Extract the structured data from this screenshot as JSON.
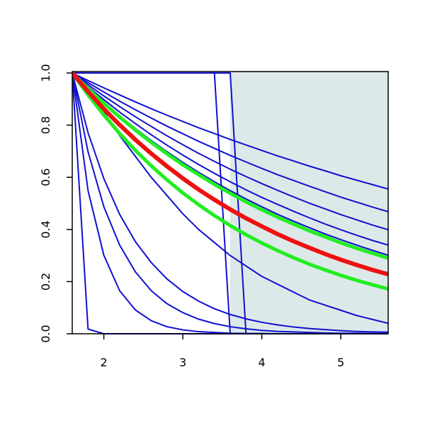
{
  "chart_data": {
    "type": "line",
    "x": [
      1.6,
      1.8,
      2.0,
      2.2,
      2.4,
      2.6,
      2.8,
      3.0,
      3.2,
      3.4,
      3.6,
      3.8,
      4.0,
      4.2,
      4.4,
      4.6,
      4.8,
      5.0,
      5.2,
      5.4,
      5.6
    ],
    "xlim": [
      1.6,
      5.6
    ],
    "ylim": [
      0,
      1
    ],
    "xticks": [
      2,
      3,
      4,
      5
    ],
    "yticks": [
      {
        "value": 0,
        "label": "0.0"
      },
      {
        "value": 0.2,
        "label": "0.2"
      },
      {
        "value": 0.4,
        "label": "0.4"
      },
      {
        "value": 0.6,
        "label": "0.6"
      },
      {
        "value": 0.8,
        "label": "0.8"
      },
      {
        "value": 1,
        "label": "1.0"
      }
    ],
    "shaded_xrange": [
      3.6,
      5.6
    ],
    "shade_color": "#dde9e9",
    "series": [
      {
        "color": "#1010d0",
        "width": 2,
        "values": [
          1,
          0.971,
          0.943,
          0.916,
          0.889,
          0.863,
          0.838,
          0.814,
          0.79,
          0.768,
          0.745,
          0.724,
          0.703,
          0.682,
          0.663,
          0.643,
          0.625,
          0.606,
          0.589,
          0.572,
          0.555
        ]
      },
      {
        "color": "#1010d0",
        "width": 2,
        "values": [
          1,
          0.963,
          0.927,
          0.892,
          0.859,
          0.827,
          0.796,
          0.767,
          0.738,
          0.711,
          0.684,
          0.659,
          0.634,
          0.61,
          0.588,
          0.566,
          0.545,
          0.524,
          0.505,
          0.486,
          0.468
        ]
      },
      {
        "color": "#1010d0",
        "width": 2,
        "values": [
          1,
          0.955,
          0.912,
          0.871,
          0.832,
          0.795,
          0.759,
          0.725,
          0.692,
          0.661,
          0.631,
          0.603,
          0.576,
          0.55,
          0.525,
          0.501,
          0.479,
          0.457,
          0.437,
          0.417,
          0.399
        ]
      },
      {
        "color": "#1010d0",
        "width": 2,
        "values": [
          1,
          0.947,
          0.898,
          0.85,
          0.806,
          0.763,
          0.723,
          0.685,
          0.649,
          0.615,
          0.583,
          0.552,
          0.523,
          0.496,
          0.47,
          0.445,
          0.421,
          0.399,
          0.378,
          0.358,
          0.34
        ]
      },
      {
        "color": "#1010d0",
        "width": 2,
        "values": [
          1,
          0.942,
          0.887,
          0.835,
          0.787,
          0.741,
          0.698,
          0.657,
          0.619,
          0.583,
          0.549,
          0.517,
          0.487,
          0.458,
          0.432,
          0.407,
          0.383,
          0.361,
          0.34,
          0.32,
          0.301
        ]
      },
      {
        "color": "#1010d0",
        "width": 2,
        "values": [
          1,
          0.92,
          0.85,
          0.76,
          0.68,
          0.6,
          0.53,
          0.46,
          0.4,
          0.35,
          0.3,
          0.26,
          0.22,
          0.19,
          0.16,
          0.13,
          0.11,
          0.09,
          0.07,
          0.055,
          0.04
        ]
      },
      {
        "color": "#1010d0",
        "width": 2,
        "values": [
          1,
          0.771,
          0.595,
          0.458,
          0.353,
          0.273,
          0.21,
          0.162,
          0.125,
          0.096,
          0.074,
          0.057,
          0.044,
          0.034,
          0.026,
          0.02,
          0.016,
          0.012,
          0.009,
          0.007,
          0.006
        ]
      },
      {
        "color": "#1010d0",
        "width": 2,
        "values": [
          1,
          0.698,
          0.487,
          0.34,
          0.237,
          0.165,
          0.115,
          0.081,
          0.056,
          0.039,
          0.027,
          0.019,
          0.013,
          0.009,
          0.007,
          0.005,
          0.003,
          0.002,
          0.002,
          0.001,
          0.001
        ]
      },
      {
        "color": "#1010d0",
        "width": 2,
        "values": [
          1,
          0.549,
          0.301,
          0.165,
          0.091,
          0.05,
          0.027,
          0.015,
          0.008,
          0.005,
          0.002,
          0.001,
          0.001,
          0,
          0,
          0,
          0,
          0,
          0,
          0,
          0
        ]
      },
      {
        "color": "#1010d0",
        "width": 2,
        "values": [
          1,
          0.018,
          0,
          0,
          0,
          0,
          0,
          0,
          0,
          0,
          0,
          0,
          0,
          0,
          0,
          0,
          0,
          0,
          0,
          0,
          0
        ]
      },
      {
        "color": "#1010d0",
        "width": 2,
        "values": [
          1,
          1,
          1,
          1,
          1,
          1,
          1,
          1,
          1,
          1,
          0,
          0,
          0,
          0,
          0,
          0,
          0,
          0,
          0,
          0,
          0
        ]
      },
      {
        "color": "#1010d0",
        "width": 2,
        "values": [
          1,
          1,
          1,
          1,
          1,
          1,
          1,
          1,
          1,
          1,
          1,
          0,
          0,
          0,
          0,
          0,
          0,
          0,
          0,
          0,
          0
        ]
      },
      {
        "color": "#22ee22",
        "width": 5,
        "values": [
          1,
          0.94,
          0.884,
          0.831,
          0.781,
          0.734,
          0.69,
          0.648,
          0.61,
          0.573,
          0.539,
          0.506,
          0.476,
          0.447,
          0.421,
          0.395,
          0.372,
          0.349,
          0.328,
          0.309,
          0.29
        ]
      },
      {
        "color": "#22ee22",
        "width": 5,
        "values": [
          1,
          0.916,
          0.839,
          0.768,
          0.703,
          0.644,
          0.59,
          0.54,
          0.495,
          0.453,
          0.415,
          0.38,
          0.348,
          0.319,
          0.292,
          0.267,
          0.245,
          0.224,
          0.205,
          0.188,
          0.172
        ]
      },
      {
        "color": "#ee1111",
        "width": 6,
        "values": [
          1,
          0.929,
          0.862,
          0.801,
          0.744,
          0.691,
          0.642,
          0.596,
          0.553,
          0.514,
          0.477,
          0.443,
          0.412,
          0.382,
          0.355,
          0.33,
          0.306,
          0.284,
          0.264,
          0.245,
          0.228
        ]
      }
    ]
  }
}
